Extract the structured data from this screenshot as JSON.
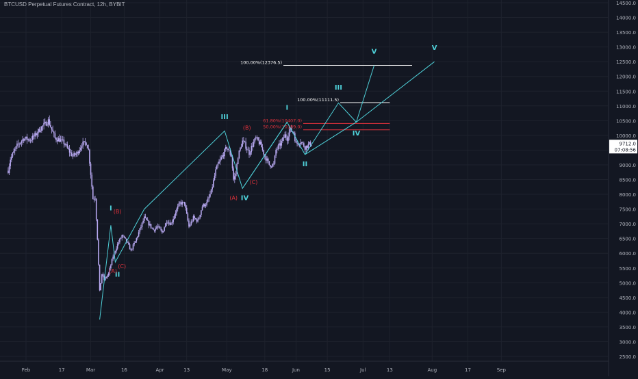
{
  "colors": {
    "background": "#131722",
    "grid": "#1e222d",
    "axis_text": "#b2b5be",
    "candle": "#b7a8f0",
    "wave_cyan": "#4fd1d9",
    "wave_red": "#e0323c",
    "fib_white": "#ffffff",
    "fib_red": "#e0323c",
    "price_tag_bg": "#ffffff",
    "price_tag_text": "#131722"
  },
  "chart_data": {
    "type": "line",
    "title": "BTCUSD Perpetual Futures Contract, 12h, BYBIT",
    "y_axis": {
      "min": 2500,
      "max": 14500,
      "ticks": [
        2500.0,
        3000.0,
        3500.0,
        4000.0,
        4500.0,
        5000.0,
        5500.0,
        6000.0,
        6500.0,
        7000.0,
        7500.0,
        8000.0,
        8500.0,
        9000.0,
        9500.0,
        10000.0,
        10500.0,
        11000.0,
        11500.0,
        12000.0,
        12500.0,
        13000.0,
        13500.0,
        14000.0,
        14500.0
      ],
      "tick_labels": [
        "2500.0",
        "3000.0",
        "3500.0",
        "4000.0",
        "4500.0",
        "5000.0",
        "5500.0",
        "6000.0",
        "6500.0",
        "7000.0",
        "7500.0",
        "8000.0",
        "8500.0",
        "9000.0",
        "9500.0",
        "10000.0",
        "10500.0",
        "11000.0",
        "11500.0",
        "12000.0",
        "12500.0",
        "13000.0",
        "13500.0",
        "14000.0",
        "14500.0"
      ]
    },
    "x_axis": {
      "ticks": [
        {
          "label": "Feb",
          "day": 0
        },
        {
          "label": "17",
          "day": 16
        },
        {
          "label": "Mar",
          "day": 29
        },
        {
          "label": "16",
          "day": 44
        },
        {
          "label": "Apr",
          "day": 60
        },
        {
          "label": "13",
          "day": 72
        },
        {
          "label": "May",
          "day": 90
        },
        {
          "label": "18",
          "day": 107
        },
        {
          "label": "Jun",
          "day": 121
        },
        {
          "label": "15",
          "day": 135
        },
        {
          "label": "Jul",
          "day": 151
        },
        {
          "label": "13",
          "day": 163
        },
        {
          "label": "Aug",
          "day": 182
        },
        {
          "label": "17",
          "day": 198
        },
        {
          "label": "Sep",
          "day": 213
        }
      ]
    },
    "price": {
      "last_price": "9712.0",
      "countdown": "07:08:56",
      "anchors": [
        [
          -8,
          8800
        ],
        [
          -7,
          9200
        ],
        [
          -4,
          9650
        ],
        [
          -1,
          9900
        ],
        [
          2,
          9850
        ],
        [
          4,
          10000
        ],
        [
          6,
          10200
        ],
        [
          8,
          10350
        ],
        [
          10,
          10500
        ],
        [
          11,
          10300
        ],
        [
          13,
          9900
        ],
        [
          15,
          9850
        ],
        [
          17,
          9750
        ],
        [
          19,
          9500
        ],
        [
          21,
          9300
        ],
        [
          23,
          9400
        ],
        [
          25,
          9700
        ],
        [
          27,
          9750
        ],
        [
          28,
          9500
        ],
        [
          29,
          8700
        ],
        [
          30,
          7850
        ],
        [
          31,
          7900
        ],
        [
          32,
          6500
        ],
        [
          33,
          4700
        ],
        [
          34,
          5300
        ],
        [
          35,
          5100
        ],
        [
          37,
          5300
        ],
        [
          39,
          5900
        ],
        [
          41,
          6300
        ],
        [
          43,
          6600
        ],
        [
          45,
          6400
        ],
        [
          47,
          6100
        ],
        [
          49,
          6400
        ],
        [
          51,
          6800
        ],
        [
          53,
          7200
        ],
        [
          55,
          7000
        ],
        [
          57,
          6800
        ],
        [
          59,
          6900
        ],
        [
          61,
          6700
        ],
        [
          63,
          7100
        ],
        [
          65,
          7000
        ],
        [
          67,
          7400
        ],
        [
          69,
          7700
        ],
        [
          71,
          7700
        ],
        [
          73,
          6900
        ],
        [
          75,
          7200
        ],
        [
          77,
          7100
        ],
        [
          79,
          7600
        ],
        [
          81,
          7700
        ],
        [
          83,
          8100
        ],
        [
          85,
          8800
        ],
        [
          86,
          9000
        ],
        [
          88,
          9300
        ],
        [
          90,
          9600
        ],
        [
          92,
          9300
        ],
        [
          93,
          8500
        ],
        [
          94,
          8700
        ],
        [
          95,
          9300
        ],
        [
          97,
          9800
        ],
        [
          98,
          9700
        ],
        [
          100,
          9400
        ],
        [
          101,
          9600
        ],
        [
          103,
          9900
        ],
        [
          105,
          9700
        ],
        [
          107,
          9300
        ],
        [
          109,
          9000
        ],
        [
          111,
          9000
        ],
        [
          112,
          9500
        ],
        [
          114,
          9700
        ],
        [
          116,
          10000
        ],
        [
          117,
          9900
        ],
        [
          118,
          10200
        ],
        [
          120,
          10100
        ],
        [
          121,
          9700
        ],
        [
          123,
          9800
        ],
        [
          125,
          9600
        ],
        [
          127,
          9700
        ],
        [
          128,
          9712
        ]
      ]
    },
    "fib_levels": [
      {
        "label": "100.00%(12376.5)",
        "price": 12376.5,
        "color": "white",
        "x_start": 45,
        "x_end": 173,
        "label_left": true
      },
      {
        "label": "100.00%(11111.5)",
        "price": 11111.5,
        "color": "white",
        "x_start": 112,
        "x_end": 163,
        "label_left": true
      },
      {
        "label": "61.80%(10407.0)",
        "price": 10407.0,
        "color": "red",
        "x_start": 110,
        "x_end": 163,
        "label_left": true
      },
      {
        "label": "50.00%(10189.0)",
        "price": 10189.0,
        "color": "red",
        "x_start": 110,
        "x_end": 163,
        "label_left": true
      }
    ],
    "wave_lines": [
      {
        "color": "cyan",
        "points": [
          [
            33,
            3750
          ],
          [
            38,
            6950
          ],
          [
            40,
            5700
          ],
          [
            53,
            7500
          ],
          [
            89,
            10150
          ],
          [
            97,
            8200
          ],
          [
            117,
            10450
          ],
          [
            125,
            9350
          ]
        ]
      },
      {
        "color": "cyan",
        "points": [
          [
            125,
            9350
          ],
          [
            140,
            11100
          ],
          [
            148,
            10450
          ],
          [
            156,
            12376.5
          ]
        ]
      },
      {
        "color": "cyan",
        "points": [
          [
            125,
            9350
          ],
          [
            148,
            10450
          ],
          [
            183,
            12500
          ]
        ]
      },
      {
        "color": "cyan",
        "points": [
          [
            97,
            8200
          ],
          [
            117,
            10450
          ]
        ]
      }
    ],
    "wave_labels": [
      {
        "text": "I",
        "x": 38,
        "y": 7450,
        "color": "cyan"
      },
      {
        "text": "II",
        "x": 41,
        "y": 5200,
        "color": "cyan"
      },
      {
        "text": "(A)",
        "x": 39,
        "y": 5330,
        "color": "red"
      },
      {
        "text": "(B)",
        "x": 41,
        "y": 7350,
        "color": "red"
      },
      {
        "text": "(C)",
        "x": 43,
        "y": 5500,
        "color": "red"
      },
      {
        "text": "III",
        "x": 89,
        "y": 10550,
        "color": "cyan"
      },
      {
        "text": "(A)",
        "x": 93,
        "y": 7820,
        "color": "red"
      },
      {
        "text": "IV",
        "x": 98,
        "y": 7800,
        "color": "cyan"
      },
      {
        "text": "(B)",
        "x": 99,
        "y": 10190,
        "color": "red"
      },
      {
        "text": "(C)",
        "x": 102,
        "y": 8350,
        "color": "red"
      },
      {
        "text": "I",
        "x": 117,
        "y": 10870,
        "color": "cyan"
      },
      {
        "text": "II",
        "x": 125,
        "y": 8950,
        "color": "cyan"
      },
      {
        "text": "III",
        "x": 140,
        "y": 11550,
        "color": "cyan"
      },
      {
        "text": "IV",
        "x": 148,
        "y": 10000,
        "color": "cyan"
      },
      {
        "text": "V",
        "x": 156,
        "y": 12770,
        "color": "cyan"
      },
      {
        "text": "V",
        "x": 183,
        "y": 12900,
        "color": "cyan"
      }
    ]
  }
}
